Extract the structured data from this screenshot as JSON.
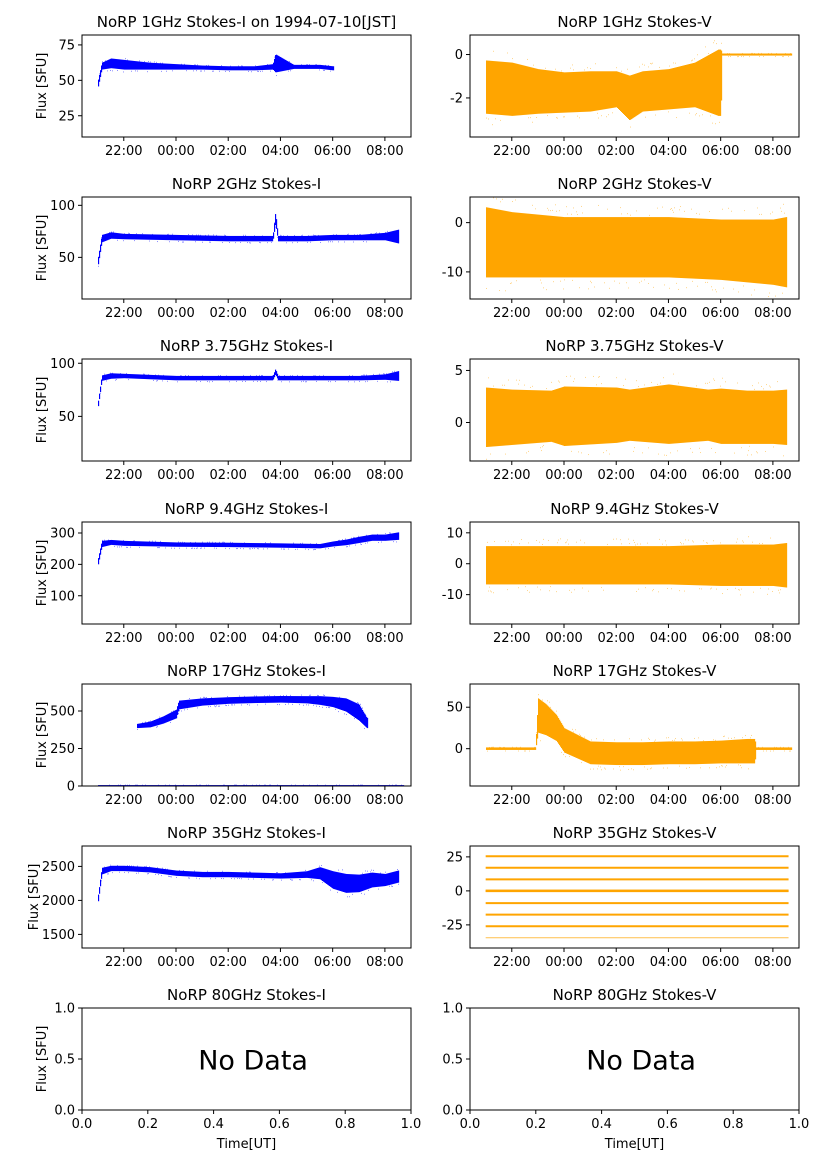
{
  "colors": {
    "stokes_i": "#0000ff",
    "stokes_v": "#ffa500",
    "axes": "#000000",
    "background": "#ffffff"
  },
  "time_ticks": [
    "22:00",
    "00:00",
    "02:00",
    "04:00",
    "06:00",
    "08:00"
  ],
  "chart_data": [
    {
      "type": "scatter",
      "title": "NoRP 1GHz Stokes-I on 1994-07-10[JST]",
      "ylabel": "Flux [SFU]",
      "xlabel": "",
      "xlim": [
        20.4,
        33.0
      ],
      "ylim": [
        10,
        82
      ],
      "yticks": [
        25,
        50,
        75
      ],
      "grid": false,
      "series": [
        {
          "color": "#0000ff",
          "x": [
            21.0,
            21.15,
            21.5,
            22.0,
            23.0,
            24.0,
            25.0,
            26.0,
            27.0,
            27.7,
            27.8,
            28.5,
            29.0,
            29.5,
            30.0
          ],
          "y": [
            47,
            60,
            62,
            61,
            60,
            59.5,
            59,
            58.5,
            58.5,
            59.5,
            62,
            59.5,
            59.5,
            59.5,
            58.5
          ],
          "spread": [
            2,
            2,
            3,
            3,
            2,
            1.5,
            1,
            1,
            1,
            1.5,
            6,
            1,
            1,
            1,
            1
          ]
        }
      ]
    },
    {
      "type": "scatter",
      "title": "NoRP 1GHz Stokes-V",
      "ylabel": "",
      "xlabel": "",
      "xlim": [
        20.4,
        33.0
      ],
      "ylim": [
        -3.8,
        0.9
      ],
      "yticks": [
        -2,
        0
      ],
      "grid": false,
      "series": [
        {
          "color": "#ffa500",
          "x": [
            21.0,
            22.0,
            23.0,
            24.0,
            25.0,
            26.0,
            26.5,
            27.0,
            28.0,
            29.0,
            29.9,
            30.0,
            30.05,
            31.0,
            32.0,
            32.7
          ],
          "y": [
            -1.5,
            -1.6,
            -1.7,
            -1.75,
            -1.7,
            -1.6,
            -2.0,
            -1.7,
            -1.6,
            -1.4,
            -1.3,
            -1.3,
            0,
            0,
            0,
            0
          ],
          "spread": [
            1.2,
            1.2,
            1.0,
            0.9,
            0.9,
            0.8,
            1.0,
            0.9,
            0.9,
            1.0,
            1.5,
            1.5,
            0.02,
            0.02,
            0.02,
            0.02
          ]
        }
      ]
    },
    {
      "type": "scatter",
      "title": "NoRP 2GHz Stokes-I",
      "ylabel": "Flux [SFU]",
      "xlabel": "",
      "xlim": [
        20.4,
        33.0
      ],
      "ylim": [
        10,
        108
      ],
      "yticks": [
        50,
        100
      ],
      "grid": false,
      "series": [
        {
          "color": "#0000ff",
          "x": [
            21.0,
            21.15,
            21.5,
            22.0,
            24.0,
            26.0,
            27.7,
            27.8,
            27.9,
            29.0,
            30.0,
            31.0,
            32.0,
            32.5
          ],
          "y": [
            45,
            68,
            71,
            70,
            69,
            68,
            68,
            88,
            68,
            68,
            69,
            69,
            70,
            70
          ],
          "spread": [
            3,
            3,
            2.5,
            2,
            2,
            2,
            2,
            5,
            2,
            2,
            2,
            2,
            3,
            6
          ]
        }
      ]
    },
    {
      "type": "scatter",
      "title": "NoRP 2GHz Stokes-V",
      "ylabel": "",
      "xlabel": "",
      "xlim": [
        20.4,
        33.0
      ],
      "ylim": [
        -15.5,
        5.2
      ],
      "yticks": [
        -10,
        0
      ],
      "grid": false,
      "series": [
        {
          "color": "#ffa500",
          "x": [
            21.0,
            22.0,
            24.0,
            26.0,
            28.0,
            30.0,
            32.0,
            32.5
          ],
          "y": [
            -4,
            -4.5,
            -5,
            -5,
            -5,
            -5.5,
            -6,
            -6
          ],
          "spread": [
            7,
            6.5,
            6,
            6,
            6,
            6,
            6.5,
            7
          ]
        }
      ]
    },
    {
      "type": "scatter",
      "title": "NoRP 3.75GHz Stokes-I",
      "ylabel": "Flux [SFU]",
      "xlabel": "",
      "xlim": [
        20.4,
        33.0
      ],
      "ylim": [
        8,
        104
      ],
      "yticks": [
        50,
        100
      ],
      "grid": false,
      "series": [
        {
          "color": "#0000ff",
          "x": [
            21.0,
            21.15,
            21.5,
            22.0,
            24.0,
            26.0,
            27.7,
            27.8,
            27.9,
            29.0,
            30.0,
            31.0,
            32.0,
            32.5
          ],
          "y": [
            60,
            86,
            88,
            88,
            86,
            86,
            86,
            92,
            86,
            86,
            86,
            86,
            87,
            88
          ],
          "spread": [
            2,
            2,
            2,
            1.5,
            1.5,
            1.5,
            1.5,
            2,
            1.5,
            1.5,
            1.5,
            1.5,
            2,
            4
          ]
        }
      ]
    },
    {
      "type": "scatter",
      "title": "NoRP 3.75GHz Stokes-V",
      "ylabel": "",
      "xlabel": "",
      "xlim": [
        20.4,
        33.0
      ],
      "ylim": [
        -3.7,
        6.1
      ],
      "yticks": [
        0,
        5
      ],
      "grid": false,
      "series": [
        {
          "color": "#ffa500",
          "x": [
            21.0,
            22.0,
            23.5,
            24.0,
            26.0,
            26.5,
            28.0,
            29.5,
            30.0,
            31.0,
            32.0,
            32.5
          ],
          "y": [
            0.5,
            0.5,
            0.6,
            0.6,
            0.7,
            0.7,
            0.8,
            0.7,
            0.6,
            0.5,
            0.5,
            0.5
          ],
          "spread": [
            2.8,
            2.6,
            2.4,
            2.8,
            2.6,
            2.4,
            2.8,
            2.4,
            2.6,
            2.5,
            2.5,
            2.6
          ]
        }
      ]
    },
    {
      "type": "scatter",
      "title": "NoRP 9.4GHz Stokes-I",
      "ylabel": "Flux [SFU]",
      "xlabel": "",
      "xlim": [
        20.4,
        33.0
      ],
      "ylim": [
        10,
        335
      ],
      "yticks": [
        100,
        200,
        300
      ],
      "grid": false,
      "series": [
        {
          "color": "#0000ff",
          "x": [
            21.0,
            21.15,
            21.5,
            22.0,
            24.0,
            26.0,
            28.0,
            29.5,
            30.0,
            30.5,
            31.0,
            31.5,
            32.0,
            32.5
          ],
          "y": [
            205,
            265,
            270,
            267,
            263,
            262,
            260,
            258,
            265,
            270,
            278,
            285,
            285,
            290
          ],
          "spread": [
            8,
            8,
            6,
            6,
            5,
            5,
            5,
            5,
            6,
            7,
            8,
            8,
            8,
            10
          ]
        }
      ]
    },
    {
      "type": "scatter",
      "title": "NoRP 9.4GHz Stokes-V",
      "ylabel": "",
      "xlabel": "",
      "xlim": [
        20.4,
        33.0
      ],
      "ylim": [
        -19.5,
        13.5
      ],
      "yticks": [
        -10,
        0,
        10
      ],
      "grid": false,
      "series": [
        {
          "color": "#ffa500",
          "x": [
            21.0,
            22.0,
            24.0,
            26.0,
            28.0,
            30.0,
            32.0,
            32.5
          ],
          "y": [
            -0.5,
            -0.5,
            -0.5,
            -0.5,
            -0.5,
            -0.5,
            -0.5,
            -0.5
          ],
          "spread": [
            6,
            6,
            6,
            6,
            6,
            6.5,
            6.5,
            7
          ]
        }
      ]
    },
    {
      "type": "scatter",
      "title": "NoRP 17GHz Stokes-I",
      "ylabel": "Flux [SFU]",
      "xlabel": "",
      "xlim": [
        20.4,
        33.0
      ],
      "ylim": [
        0,
        680
      ],
      "yticks": [
        0,
        250,
        500
      ],
      "grid": false,
      "series": [
        {
          "color": "#0000ff",
          "x": [
            22.5,
            23.0,
            23.5,
            24.0,
            24.1,
            25.0,
            26.0,
            27.0,
            28.0,
            29.0,
            29.5,
            30.0,
            30.5,
            31.0,
            31.3
          ],
          "y": [
            400,
            410,
            440,
            480,
            540,
            560,
            570,
            575,
            578,
            575,
            570,
            560,
            540,
            490,
            420
          ],
          "spread": [
            10,
            15,
            20,
            25,
            25,
            20,
            18,
            18,
            18,
            20,
            25,
            30,
            40,
            50,
            30
          ]
        },
        {
          "color": "#0000ff",
          "x": [
            21.0,
            23.0,
            25.0,
            27.0,
            29.0,
            31.0,
            32.7
          ],
          "y": [
            0,
            0,
            0,
            0,
            0,
            0,
            0
          ],
          "spread": [
            2,
            2,
            2,
            2,
            2,
            2,
            2
          ]
        }
      ]
    },
    {
      "type": "scatter",
      "title": "NoRP 17GHz Stokes-V",
      "ylabel": "",
      "xlabel": "",
      "xlim": [
        20.4,
        33.0
      ],
      "ylim": [
        -45,
        78
      ],
      "yticks": [
        0,
        50
      ],
      "grid": false,
      "series": [
        {
          "color": "#ffa500",
          "x": [
            21.0,
            22.0,
            22.9,
            23.0,
            23.3,
            23.7,
            24.0,
            25.0,
            26.0,
            27.0,
            28.0,
            29.0,
            30.0,
            31.0,
            31.3,
            31.35,
            32.0,
            32.7
          ],
          "y": [
            0,
            0,
            0,
            40,
            35,
            25,
            10,
            -5,
            -6,
            -6,
            -5,
            -5,
            -4,
            -3,
            -3,
            0,
            0,
            0
          ],
          "spread": [
            0.8,
            0.8,
            0.8,
            20,
            18,
            15,
            14,
            13,
            13,
            13,
            13,
            13,
            13,
            14,
            14,
            0.8,
            0.8,
            0.8
          ]
        }
      ]
    },
    {
      "type": "scatter",
      "title": "NoRP 35GHz Stokes-I",
      "ylabel": "Flux [SFU]",
      "xlabel": "",
      "xlim": [
        20.4,
        33.0
      ],
      "ylim": [
        1300,
        2800
      ],
      "yticks": [
        1500,
        2000,
        2500
      ],
      "grid": false,
      "series": [
        {
          "color": "#0000ff",
          "x": [
            21.0,
            21.15,
            21.5,
            22.0,
            23.0,
            24.0,
            25.0,
            26.0,
            27.0,
            28.0,
            29.0,
            29.5,
            30.0,
            30.5,
            31.0,
            31.5,
            32.0,
            32.5
          ],
          "y": [
            2000,
            2430,
            2470,
            2470,
            2450,
            2400,
            2380,
            2380,
            2370,
            2360,
            2380,
            2400,
            2300,
            2250,
            2250,
            2300,
            2300,
            2350
          ],
          "spread": [
            40,
            40,
            30,
            30,
            30,
            30,
            30,
            30,
            30,
            30,
            40,
            80,
            120,
            130,
            120,
            100,
            80,
            80
          ]
        }
      ]
    },
    {
      "type": "scatter",
      "title": "NoRP 35GHz Stokes-V",
      "ylabel": "",
      "xlabel": "",
      "xlim": [
        20.4,
        33.0
      ],
      "ylim": [
        -42,
        33
      ],
      "yticks": [
        -25,
        0,
        25
      ],
      "grid": false,
      "levels": [
        -34.5,
        -26,
        -17.5,
        -9,
        0,
        8.5,
        17,
        25.5
      ],
      "series": [
        {
          "color": "#ffa500",
          "x": [
            21.0,
            32.6
          ],
          "y": [
            0,
            0
          ],
          "spread": [
            0,
            0
          ]
        }
      ]
    },
    {
      "type": "scatter",
      "title": "NoRP 80GHz Stokes-I",
      "ylabel": "Flux [SFU]",
      "xlabel": "Time[UT]",
      "xlim": [
        0.0,
        1.0
      ],
      "ylim": [
        0.0,
        1.0
      ],
      "xticks": [
        "0.0",
        "0.2",
        "0.4",
        "0.6",
        "0.8",
        "1.0"
      ],
      "yticks": [
        "0.0",
        "0.5",
        "1.0"
      ],
      "grid": false,
      "annotation": "No Data",
      "series": []
    },
    {
      "type": "scatter",
      "title": "NoRP 80GHz Stokes-V",
      "ylabel": "",
      "xlabel": "Time[UT]",
      "xlim": [
        0.0,
        1.0
      ],
      "ylim": [
        0.0,
        1.0
      ],
      "xticks": [
        "0.0",
        "0.2",
        "0.4",
        "0.6",
        "0.8",
        "1.0"
      ],
      "yticks": [
        "0.0",
        "0.5",
        "1.0"
      ],
      "grid": false,
      "annotation": "No Data",
      "series": []
    }
  ]
}
